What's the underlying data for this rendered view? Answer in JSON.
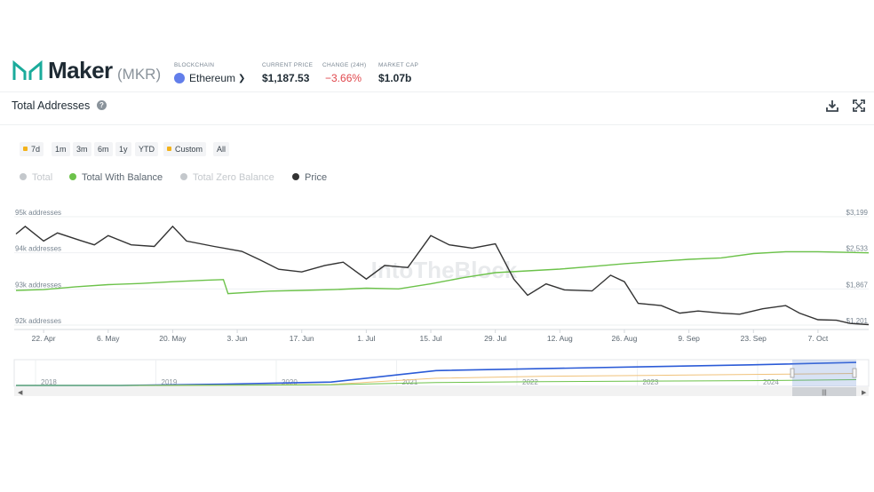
{
  "header": {
    "app_name": "Maker",
    "ticker": "(MKR)",
    "blockchain_label": "BLOCKCHAIN",
    "blockchain_value": "Ethereum",
    "price_label": "CURRENT PRICE",
    "price_value": "$1,187.53",
    "change_label": "CHANGE (24H)",
    "change_value": "−3.66%",
    "mcap_label": "MARKET CAP",
    "mcap_value": "$1.07b",
    "colors": {
      "brand": "#1aab9b",
      "negative": "#e0474c",
      "eth": "#627eea"
    }
  },
  "card": {
    "title": "Total Addresses",
    "help": "?",
    "icons": [
      "download-icon",
      "fullscreen-icon"
    ]
  },
  "ranges": [
    "7d",
    "1m",
    "3m",
    "6m",
    "1y",
    "YTD",
    "Custom",
    "All"
  ],
  "legend": [
    {
      "label": "Total",
      "color": "#c4c8cc",
      "active": false
    },
    {
      "label": "Total With Balance",
      "color": "#6cc24a",
      "active": true
    },
    {
      "label": "Total Zero Balance",
      "color": "#c4c8cc",
      "active": false
    },
    {
      "label": "Price",
      "color": "#333333",
      "active": true
    }
  ],
  "watermark": "IntoTheBlock",
  "chart_data": [
    {
      "type": "line",
      "y_left": {
        "ticks": [
          "95k addresses",
          "94k addresses",
          "93k addresses",
          "92k addresses"
        ],
        "range": [
          92000,
          95000
        ]
      },
      "y_right": {
        "ticks": [
          "$3,199",
          "$2,533",
          "$1,867",
          "$1,201"
        ],
        "range": [
          1201,
          3199
        ]
      },
      "x_ticks": [
        "22. Apr",
        "6. May",
        "20. May",
        "3. Jun",
        "17. Jun",
        "1. Jul",
        "15. Jul",
        "29. Jul",
        "12. Aug",
        "26. Aug",
        "9. Sep",
        "23. Sep",
        "7. Oct"
      ],
      "x_range": [
        "2024-04-16",
        "2024-10-18"
      ],
      "series": [
        {
          "name": "Total With Balance",
          "color": "#6cc24a",
          "axis": "left",
          "points": [
            [
              "2024-04-16",
              92960
            ],
            [
              "2024-04-22",
              92980
            ],
            [
              "2024-04-29",
              93060
            ],
            [
              "2024-05-06",
              93120
            ],
            [
              "2024-05-13",
              93150
            ],
            [
              "2024-05-20",
              93200
            ],
            [
              "2024-05-27",
              93240
            ],
            [
              "2024-05-31",
              93260
            ],
            [
              "2024-06-01",
              92870
            ],
            [
              "2024-06-10",
              92940
            ],
            [
              "2024-06-17",
              92960
            ],
            [
              "2024-06-24",
              92980
            ],
            [
              "2024-07-01",
              93020
            ],
            [
              "2024-07-08",
              93000
            ],
            [
              "2024-07-15",
              93140
            ],
            [
              "2024-07-22",
              93310
            ],
            [
              "2024-07-29",
              93450
            ],
            [
              "2024-08-05",
              93500
            ],
            [
              "2024-08-12",
              93550
            ],
            [
              "2024-08-19",
              93620
            ],
            [
              "2024-08-26",
              93700
            ],
            [
              "2024-09-02",
              93760
            ],
            [
              "2024-09-09",
              93820
            ],
            [
              "2024-09-16",
              93860
            ],
            [
              "2024-09-23",
              93980
            ],
            [
              "2024-09-30",
              94030
            ],
            [
              "2024-10-07",
              94030
            ],
            [
              "2024-10-18",
              94000
            ]
          ]
        },
        {
          "name": "Price",
          "color": "#333333",
          "axis": "right",
          "points": [
            [
              "2024-04-16",
              2880
            ],
            [
              "2024-04-18",
              3020
            ],
            [
              "2024-04-22",
              2750
            ],
            [
              "2024-04-25",
              2900
            ],
            [
              "2024-04-30",
              2760
            ],
            [
              "2024-05-03",
              2680
            ],
            [
              "2024-05-06",
              2850
            ],
            [
              "2024-05-11",
              2680
            ],
            [
              "2024-05-16",
              2650
            ],
            [
              "2024-05-20",
              3020
            ],
            [
              "2024-05-23",
              2750
            ],
            [
              "2024-05-29",
              2650
            ],
            [
              "2024-06-04",
              2560
            ],
            [
              "2024-06-08",
              2400
            ],
            [
              "2024-06-12",
              2230
            ],
            [
              "2024-06-17",
              2180
            ],
            [
              "2024-06-22",
              2300
            ],
            [
              "2024-06-26",
              2360
            ],
            [
              "2024-07-01",
              2050
            ],
            [
              "2024-07-05",
              2300
            ],
            [
              "2024-07-10",
              2260
            ],
            [
              "2024-07-15",
              2850
            ],
            [
              "2024-07-19",
              2680
            ],
            [
              "2024-07-24",
              2620
            ],
            [
              "2024-07-29",
              2700
            ],
            [
              "2024-08-02",
              2050
            ],
            [
              "2024-08-05",
              1750
            ],
            [
              "2024-08-09",
              1960
            ],
            [
              "2024-08-13",
              1850
            ],
            [
              "2024-08-19",
              1830
            ],
            [
              "2024-08-23",
              2120
            ],
            [
              "2024-08-26",
              2000
            ],
            [
              "2024-08-29",
              1600
            ],
            [
              "2024-09-03",
              1560
            ],
            [
              "2024-09-07",
              1420
            ],
            [
              "2024-09-11",
              1460
            ],
            [
              "2024-09-16",
              1420
            ],
            [
              "2024-09-20",
              1400
            ],
            [
              "2024-09-25",
              1500
            ],
            [
              "2024-09-30",
              1560
            ],
            [
              "2024-10-03",
              1420
            ],
            [
              "2024-10-07",
              1300
            ],
            [
              "2024-10-11",
              1290
            ],
            [
              "2024-10-14",
              1230
            ],
            [
              "2024-10-18",
              1210
            ]
          ]
        }
      ]
    },
    {
      "type": "area",
      "role": "navigator",
      "x_ticks": [
        "2018",
        "2019",
        "2020",
        "2021",
        "2022",
        "2023",
        "2024"
      ],
      "series": [
        {
          "color": "#2b5bd7",
          "values": [
            0.0,
            0.0,
            0.05,
            0.14,
            0.62,
            0.7,
            0.78,
            0.86,
            0.96
          ]
        },
        {
          "color": "#f0c27a",
          "values": [
            0.0,
            0.0,
            0.02,
            0.04,
            0.3,
            0.38,
            0.42,
            0.46,
            0.5
          ]
        },
        {
          "color": "#6cc24a",
          "values": [
            0.0,
            0.0,
            0.01,
            0.03,
            0.12,
            0.16,
            0.18,
            0.2,
            0.24
          ]
        }
      ]
    }
  ]
}
